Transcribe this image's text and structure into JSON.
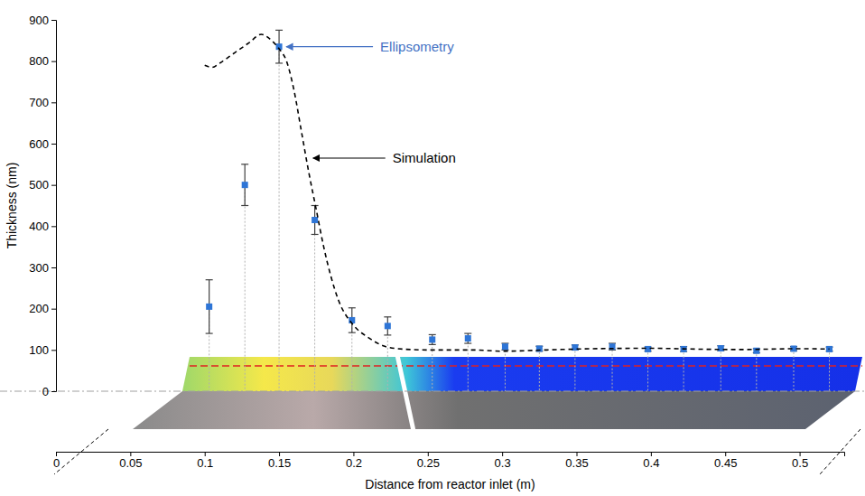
{
  "chart_data": {
    "type": "scatter",
    "x_label": "Distance from reactor inlet (m)",
    "y_label": "Thickness (nm)",
    "xlim": [
      0,
      0.53
    ],
    "ylim": [
      0,
      900
    ],
    "xticks": [
      0,
      0.05,
      0.1,
      0.15,
      0.2,
      0.25,
      0.3,
      0.35,
      0.4,
      0.45,
      0.5
    ],
    "yticks": [
      0,
      100,
      200,
      300,
      400,
      500,
      600,
      700,
      800,
      900
    ],
    "grid": false,
    "series": [
      {
        "type": "scatter",
        "color": "#2e75d6",
        "marker": "square",
        "x": [
          0.103,
          0.127,
          0.15,
          0.174,
          0.199,
          0.223,
          0.253,
          0.277,
          0.302,
          0.325,
          0.349,
          0.374,
          0.398,
          0.422,
          0.447,
          0.471,
          0.496,
          0.52
        ],
        "values": [
          205,
          500,
          835,
          415,
          172,
          158,
          125,
          128,
          108,
          103,
          106,
          108,
          102,
          102,
          104,
          98,
          103,
          102
        ],
        "errors": [
          65,
          50,
          40,
          35,
          30,
          22,
          12,
          12,
          8,
          6,
          6,
          8,
          5,
          6,
          6,
          5,
          5,
          5
        ]
      },
      {
        "type": "line",
        "color": "#000000",
        "line_style": "dashed",
        "x": [
          0.1,
          0.105,
          0.11,
          0.12,
          0.13,
          0.138,
          0.145,
          0.15,
          0.155,
          0.16,
          0.165,
          0.17,
          0.175,
          0.18,
          0.19,
          0.2,
          0.21,
          0.22,
          0.23,
          0.25,
          0.28,
          0.3,
          0.33,
          0.36,
          0.4,
          0.43,
          0.46,
          0.5,
          0.52
        ],
        "values": [
          790,
          785,
          795,
          820,
          845,
          865,
          850,
          830,
          800,
          730,
          630,
          530,
          440,
          350,
          220,
          160,
          130,
          110,
          103,
          100,
          100,
          97,
          100,
          103,
          104,
          102,
          101,
          103,
          102
        ]
      }
    ],
    "annotations": [
      {
        "text": "Ellipsometry",
        "x": 0.15,
        "y": 835,
        "color": "#4472c4"
      },
      {
        "text": "Simulation",
        "x": 0.168,
        "y": 565,
        "color": "#000000"
      }
    ]
  }
}
